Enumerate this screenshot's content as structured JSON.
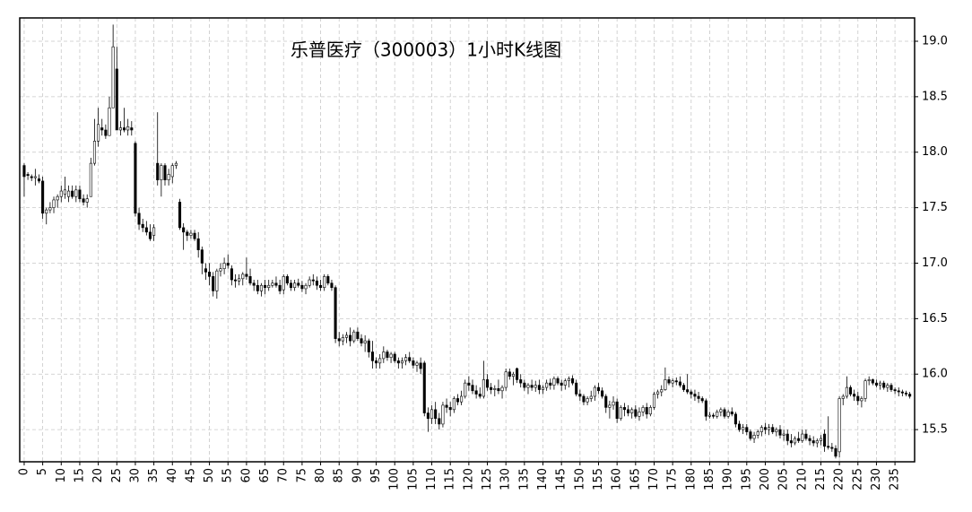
{
  "chart_data": {
    "type": "candlestick",
    "title": "乐普医疗（300003）1小时K线图",
    "x": [
      0,
      1,
      2,
      3,
      4,
      5,
      6,
      7,
      8,
      9,
      10,
      11,
      12,
      13,
      14,
      15,
      16,
      17,
      18,
      19,
      20,
      21,
      22,
      23,
      24,
      25,
      26,
      27,
      28,
      29,
      30,
      31,
      32,
      33,
      34,
      35,
      36,
      37,
      38,
      39,
      40,
      41,
      42,
      43,
      44,
      45,
      46,
      47,
      48,
      49,
      50,
      51,
      52,
      53,
      54,
      55,
      56,
      57,
      58,
      59,
      60,
      61,
      62,
      63,
      64,
      65,
      66,
      67,
      68,
      69,
      70,
      71,
      72,
      73,
      74,
      75,
      76,
      77,
      78,
      79,
      80,
      81,
      82,
      83,
      84,
      85,
      86,
      87,
      88,
      89,
      90,
      91,
      92,
      93,
      94,
      95,
      96,
      97,
      98,
      99,
      100,
      101,
      102,
      103,
      104,
      105,
      106,
      107,
      108,
      109,
      110,
      111,
      112,
      113,
      114,
      115,
      116,
      117,
      118,
      119,
      120,
      121,
      122,
      123,
      124,
      125,
      126,
      127,
      128,
      129,
      130,
      131,
      132,
      133,
      134,
      135,
      136,
      137,
      138,
      139,
      140,
      141,
      142,
      143,
      144,
      145,
      146,
      147,
      148,
      149,
      150,
      151,
      152,
      153,
      154,
      155,
      156,
      157,
      158,
      159,
      160,
      161,
      162,
      163,
      164,
      165,
      166,
      167,
      168,
      169,
      170,
      171,
      172,
      173,
      174,
      175,
      176,
      177,
      178,
      179,
      180,
      181,
      182,
      183,
      184,
      185,
      186,
      187,
      188,
      189,
      190,
      191,
      192,
      193,
      194,
      195,
      196,
      197,
      198,
      199,
      200,
      201,
      202,
      203,
      204,
      205,
      206,
      207,
      208,
      209,
      210,
      211,
      212,
      213,
      214,
      215,
      216,
      217,
      218,
      219,
      220,
      221,
      222,
      223,
      224,
      225,
      226,
      227,
      228,
      229,
      230,
      231,
      232,
      233,
      234,
      235,
      236,
      237,
      238,
      239
    ],
    "open": [
      17.88,
      17.8,
      17.78,
      17.77,
      17.76,
      17.74,
      17.45,
      17.48,
      17.5,
      17.57,
      17.6,
      17.62,
      17.6,
      17.65,
      17.6,
      17.66,
      17.58,
      17.55,
      17.6,
      17.9,
      18.1,
      18.22,
      18.2,
      18.15,
      18.4,
      18.75,
      18.2,
      18.22,
      18.2,
      18.22,
      18.08,
      17.45,
      17.35,
      17.32,
      17.28,
      17.25,
      17.9,
      17.75,
      17.88,
      17.75,
      17.78,
      17.88,
      17.55,
      17.32,
      17.28,
      17.25,
      17.27,
      17.22,
      17.12,
      16.95,
      16.92,
      16.88,
      16.75,
      16.93,
      16.95,
      17.0,
      16.95,
      16.85,
      16.84,
      16.86,
      16.9,
      16.88,
      16.82,
      16.8,
      16.75,
      16.8,
      16.78,
      16.8,
      16.82,
      16.8,
      16.76,
      16.88,
      16.82,
      16.78,
      16.82,
      16.8,
      16.77,
      16.8,
      16.85,
      16.84,
      16.8,
      16.78,
      16.88,
      16.82,
      16.78,
      16.32,
      16.3,
      16.33,
      16.35,
      16.3,
      16.38,
      16.32,
      16.28,
      16.3,
      16.2,
      16.12,
      16.1,
      16.14,
      16.2,
      16.15,
      16.18,
      16.12,
      16.1,
      16.12,
      16.15,
      16.12,
      16.08,
      16.1,
      16.1,
      15.65,
      15.6,
      15.68,
      15.6,
      15.55,
      15.72,
      15.7,
      15.68,
      15.78,
      15.75,
      15.8,
      15.92,
      15.9,
      15.85,
      15.82,
      15.8,
      15.95,
      15.88,
      15.86,
      15.87,
      15.85,
      15.88,
      16.02,
      15.98,
      16.05,
      15.95,
      15.92,
      15.88,
      15.9,
      15.88,
      15.9,
      15.86,
      15.88,
      15.92,
      15.9,
      15.96,
      15.92,
      15.9,
      15.94,
      15.96,
      15.92,
      15.82,
      15.8,
      15.75,
      15.78,
      15.8,
      15.88,
      15.85,
      15.8,
      15.7,
      15.72,
      15.75,
      15.6,
      15.7,
      15.68,
      15.65,
      15.68,
      15.62,
      15.66,
      15.7,
      15.64,
      15.7,
      15.82,
      15.84,
      15.86,
      15.95,
      15.92,
      15.94,
      15.93,
      15.9,
      15.86,
      15.84,
      15.82,
      15.8,
      15.78,
      15.76,
      15.62,
      15.63,
      15.62,
      15.66,
      15.68,
      15.62,
      15.66,
      15.64,
      15.55,
      15.5,
      15.52,
      15.48,
      15.42,
      15.45,
      15.48,
      15.52,
      15.5,
      15.52,
      15.48,
      15.5,
      15.45,
      15.46,
      15.4,
      15.38,
      15.42,
      15.4,
      15.46,
      15.42,
      15.4,
      15.38,
      15.4,
      15.46,
      15.35,
      15.34,
      15.33,
      15.3,
      15.78,
      15.8,
      15.88,
      15.82,
      15.8,
      15.76,
      15.78,
      15.94,
      15.95,
      15.92,
      15.9,
      15.92,
      15.88,
      15.9,
      15.86,
      15.85,
      15.84,
      15.83,
      15.82
    ],
    "high": [
      17.9,
      17.82,
      17.8,
      17.85,
      17.8,
      17.78,
      17.5,
      17.55,
      17.6,
      17.62,
      17.7,
      17.78,
      17.7,
      17.7,
      17.7,
      17.7,
      17.62,
      17.62,
      17.95,
      18.3,
      18.4,
      18.3,
      18.25,
      18.5,
      19.15,
      18.95,
      18.28,
      18.4,
      18.3,
      18.28,
      18.1,
      17.5,
      17.4,
      17.38,
      17.35,
      17.35,
      18.36,
      17.9,
      17.9,
      17.85,
      17.9,
      17.92,
      17.58,
      17.36,
      17.3,
      17.3,
      17.3,
      17.28,
      17.15,
      17.0,
      17.0,
      16.92,
      16.95,
      17.0,
      17.05,
      17.08,
      16.98,
      16.9,
      16.9,
      16.92,
      17.05,
      16.95,
      16.85,
      16.85,
      16.82,
      16.85,
      16.85,
      16.85,
      16.88,
      16.85,
      16.9,
      16.9,
      16.85,
      16.85,
      16.86,
      16.84,
      16.82,
      16.88,
      16.9,
      16.88,
      16.85,
      16.9,
      16.9,
      16.85,
      16.8,
      16.38,
      16.36,
      16.38,
      16.42,
      16.4,
      16.42,
      16.36,
      16.35,
      16.32,
      16.3,
      16.15,
      16.18,
      16.25,
      16.22,
      16.2,
      16.2,
      16.15,
      16.15,
      16.18,
      16.2,
      16.15,
      16.12,
      16.15,
      16.12,
      15.7,
      15.72,
      15.75,
      15.65,
      15.75,
      15.78,
      15.75,
      15.8,
      15.82,
      15.85,
      15.95,
      15.98,
      15.95,
      15.9,
      15.88,
      16.12,
      16.0,
      15.92,
      15.9,
      15.95,
      15.9,
      16.05,
      16.05,
      16.02,
      16.06,
      16.0,
      15.95,
      15.92,
      15.95,
      15.94,
      15.95,
      15.9,
      15.95,
      15.96,
      15.98,
      15.98,
      15.95,
      15.96,
      15.98,
      15.99,
      15.95,
      15.86,
      15.82,
      15.8,
      15.85,
      15.9,
      15.92,
      15.88,
      15.82,
      15.76,
      15.8,
      15.78,
      15.72,
      15.74,
      15.72,
      15.7,
      15.72,
      15.7,
      15.72,
      15.74,
      15.72,
      15.84,
      15.86,
      15.9,
      16.06,
      15.98,
      15.96,
      15.97,
      15.98,
      15.92,
      16.0,
      15.86,
      15.86,
      15.84,
      15.8,
      15.78,
      15.66,
      15.65,
      15.68,
      15.7,
      15.7,
      15.68,
      15.7,
      15.66,
      15.58,
      15.55,
      15.55,
      15.5,
      15.48,
      15.5,
      15.54,
      15.56,
      15.55,
      15.55,
      15.52,
      15.54,
      15.5,
      15.5,
      15.46,
      15.44,
      15.48,
      15.5,
      15.5,
      15.45,
      15.44,
      15.42,
      15.45,
      15.5,
      15.62,
      15.38,
      15.36,
      15.8,
      15.82,
      15.98,
      15.9,
      15.86,
      15.84,
      15.8,
      15.96,
      15.98,
      15.96,
      15.95,
      15.94,
      15.94,
      15.92,
      15.92,
      15.88,
      15.88,
      15.86,
      15.85,
      15.84
    ],
    "low": [
      17.6,
      17.75,
      17.74,
      17.7,
      17.72,
      17.4,
      17.35,
      17.45,
      17.45,
      17.5,
      17.55,
      17.58,
      17.55,
      17.58,
      17.55,
      17.55,
      17.52,
      17.5,
      17.6,
      17.88,
      18.05,
      18.15,
      18.12,
      18.15,
      18.4,
      18.2,
      18.15,
      18.18,
      18.15,
      18.15,
      17.42,
      17.3,
      17.28,
      17.25,
      17.2,
      17.2,
      17.7,
      17.6,
      17.7,
      17.7,
      17.72,
      17.85,
      17.3,
      17.12,
      17.2,
      17.22,
      17.2,
      17.05,
      16.9,
      16.85,
      16.8,
      16.7,
      16.68,
      16.88,
      16.9,
      16.95,
      16.8,
      16.78,
      16.8,
      16.8,
      16.85,
      16.8,
      16.75,
      16.72,
      16.7,
      16.72,
      16.75,
      16.78,
      16.78,
      16.72,
      16.72,
      16.8,
      16.75,
      16.75,
      16.78,
      16.74,
      16.72,
      16.78,
      16.8,
      16.76,
      16.75,
      16.75,
      16.8,
      16.75,
      16.28,
      16.25,
      16.26,
      16.28,
      16.25,
      16.28,
      16.3,
      16.25,
      16.2,
      16.15,
      16.05,
      16.05,
      16.05,
      16.1,
      16.12,
      16.1,
      16.1,
      16.05,
      16.05,
      16.08,
      16.1,
      16.05,
      16.02,
      16.0,
      15.62,
      15.48,
      15.55,
      15.55,
      15.5,
      15.52,
      15.65,
      15.62,
      15.65,
      15.72,
      15.72,
      15.78,
      15.85,
      15.82,
      15.78,
      15.78,
      15.78,
      15.85,
      15.82,
      15.8,
      15.82,
      15.78,
      15.85,
      15.95,
      15.9,
      15.92,
      15.88,
      15.85,
      15.82,
      15.85,
      15.84,
      15.82,
      15.82,
      15.85,
      15.86,
      15.86,
      15.9,
      15.85,
      15.86,
      15.88,
      15.9,
      15.8,
      15.76,
      15.72,
      15.72,
      15.75,
      15.76,
      15.82,
      15.78,
      15.65,
      15.6,
      15.68,
      15.56,
      15.58,
      15.62,
      15.62,
      15.6,
      15.6,
      15.58,
      15.62,
      15.6,
      15.62,
      15.68,
      15.78,
      15.8,
      15.85,
      15.9,
      15.88,
      15.9,
      15.88,
      15.84,
      15.82,
      15.78,
      15.76,
      15.74,
      15.74,
      15.58,
      15.6,
      15.6,
      15.6,
      15.62,
      15.6,
      15.6,
      15.62,
      15.52,
      15.48,
      15.46,
      15.45,
      15.4,
      15.38,
      15.42,
      15.44,
      15.46,
      15.45,
      15.46,
      15.44,
      15.42,
      15.4,
      15.36,
      15.34,
      15.36,
      15.38,
      15.38,
      15.4,
      15.36,
      15.35,
      15.34,
      15.36,
      15.3,
      15.32,
      15.3,
      15.24,
      15.25,
      15.72,
      15.78,
      15.8,
      15.76,
      15.72,
      15.7,
      15.75,
      15.9,
      15.9,
      15.88,
      15.86,
      15.86,
      15.84,
      15.84,
      15.82,
      15.8,
      15.8,
      15.8,
      15.78
    ],
    "close": [
      17.78,
      17.79,
      17.77,
      17.78,
      17.74,
      17.45,
      17.48,
      17.5,
      17.57,
      17.6,
      17.65,
      17.66,
      17.65,
      17.6,
      17.66,
      17.58,
      17.55,
      17.58,
      17.9,
      18.1,
      18.25,
      18.2,
      18.15,
      18.4,
      18.95,
      18.2,
      18.22,
      18.2,
      18.23,
      18.2,
      17.45,
      17.35,
      17.32,
      17.28,
      17.22,
      17.32,
      17.75,
      17.88,
      17.75,
      17.8,
      17.88,
      17.9,
      17.32,
      17.28,
      17.25,
      17.27,
      17.22,
      17.12,
      17.0,
      16.92,
      16.88,
      16.75,
      16.93,
      16.95,
      17.0,
      16.98,
      16.85,
      16.84,
      16.86,
      16.9,
      16.88,
      16.82,
      16.8,
      16.75,
      16.8,
      16.78,
      16.8,
      16.82,
      16.8,
      16.75,
      16.88,
      16.82,
      16.78,
      16.82,
      16.8,
      16.77,
      16.8,
      16.85,
      16.84,
      16.8,
      16.78,
      16.88,
      16.82,
      16.78,
      16.32,
      16.3,
      16.33,
      16.35,
      16.3,
      16.38,
      16.32,
      16.28,
      16.3,
      16.2,
      16.12,
      16.1,
      16.14,
      16.2,
      16.15,
      16.18,
      16.12,
      16.1,
      16.12,
      16.15,
      16.12,
      16.08,
      16.1,
      16.05,
      15.65,
      15.6,
      15.68,
      15.6,
      15.55,
      15.72,
      15.7,
      15.68,
      15.78,
      15.75,
      15.8,
      15.92,
      15.9,
      15.85,
      15.82,
      15.8,
      15.95,
      15.88,
      15.86,
      15.87,
      15.85,
      15.88,
      16.02,
      15.98,
      16.0,
      15.95,
      15.92,
      15.88,
      15.9,
      15.88,
      15.9,
      15.86,
      15.88,
      15.92,
      15.9,
      15.96,
      15.92,
      15.9,
      15.94,
      15.96,
      15.92,
      15.82,
      15.8,
      15.75,
      15.78,
      15.8,
      15.88,
      15.85,
      15.8,
      15.7,
      15.72,
      15.75,
      15.6,
      15.7,
      15.68,
      15.65,
      15.68,
      15.62,
      15.66,
      15.7,
      15.64,
      15.7,
      15.82,
      15.84,
      15.86,
      15.95,
      15.92,
      15.94,
      15.93,
      15.9,
      15.86,
      15.84,
      15.82,
      15.8,
      15.78,
      15.76,
      15.62,
      15.63,
      15.62,
      15.66,
      15.68,
      15.62,
      15.66,
      15.64,
      15.55,
      15.5,
      15.52,
      15.48,
      15.42,
      15.45,
      15.48,
      15.52,
      15.5,
      15.52,
      15.48,
      15.5,
      15.45,
      15.46,
      15.4,
      15.38,
      15.42,
      15.4,
      15.46,
      15.42,
      15.4,
      15.38,
      15.4,
      15.42,
      15.35,
      15.34,
      15.33,
      15.26,
      15.78,
      15.8,
      15.88,
      15.82,
      15.8,
      15.76,
      15.78,
      15.94,
      15.95,
      15.92,
      15.9,
      15.92,
      15.88,
      15.9,
      15.86,
      15.85,
      15.84,
      15.83,
      15.82,
      15.8
    ],
    "up_color": "#ffffff",
    "down_color": "#000000",
    "edge_color": "#000000",
    "xlim": [
      -1.2,
      240.3
    ],
    "xticks": [
      0,
      5,
      10,
      15,
      20,
      25,
      30,
      35,
      40,
      45,
      50,
      55,
      60,
      65,
      70,
      75,
      80,
      85,
      90,
      95,
      100,
      105,
      110,
      115,
      120,
      125,
      130,
      135,
      140,
      145,
      150,
      155,
      160,
      165,
      170,
      175,
      180,
      185,
      190,
      195,
      200,
      205,
      210,
      215,
      220,
      225,
      230,
      235
    ],
    "ylim": [
      15.21,
      19.21
    ],
    "yticks": [
      15.5,
      {
        "value": 16,
        "label": "16.0"
      },
      16.5,
      {
        "value": 17,
        "label": "17.0"
      },
      17.5,
      {
        "value": 18,
        "label": "18.0"
      },
      18.5,
      {
        "value": 19,
        "label": "19.0"
      }
    ],
    "grid": true
  }
}
